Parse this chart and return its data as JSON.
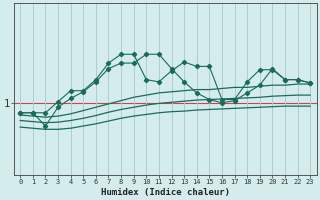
{
  "xlabel": "Humidex (Indice chaleur)",
  "background_color": "#d4ecec",
  "line_color": "#1a6b5a",
  "grid_color": "#aecece",
  "red_line_color": "#cc4444",
  "x_ticks": [
    0,
    1,
    2,
    3,
    4,
    5,
    6,
    7,
    8,
    9,
    10,
    11,
    12,
    13,
    14,
    15,
    16,
    17,
    18,
    19,
    20,
    21,
    22,
    23
  ],
  "y_tick_val": 1.0,
  "ylim": [
    -0.3,
    2.8
  ],
  "xlim": [
    -0.5,
    23.5
  ],
  "jagged1_y": [
    0.82,
    0.82,
    0.58,
    0.92,
    1.08,
    1.2,
    1.38,
    1.62,
    1.72,
    1.72,
    1.88,
    1.88,
    1.62,
    1.38,
    1.18,
    1.06,
    1.0,
    1.04,
    1.18,
    1.32,
    1.62,
    1.42,
    1.42,
    1.36
  ],
  "jagged2_y": [
    0.82,
    0.82,
    0.82,
    1.02,
    1.22,
    1.22,
    1.42,
    1.72,
    1.88,
    1.88,
    1.42,
    1.38,
    1.58,
    1.74,
    1.66,
    1.66,
    1.06,
    1.06,
    1.38,
    1.6,
    1.6,
    1.42,
    1.42,
    1.36
  ],
  "smooth_upper_y": [
    0.78,
    0.76,
    0.74,
    0.76,
    0.8,
    0.86,
    0.92,
    0.98,
    1.04,
    1.1,
    1.14,
    1.18,
    1.2,
    1.22,
    1.24,
    1.24,
    1.26,
    1.28,
    1.28,
    1.3,
    1.32,
    1.32,
    1.34,
    1.34
  ],
  "smooth_mid_y": [
    0.68,
    0.66,
    0.64,
    0.65,
    0.68,
    0.72,
    0.77,
    0.83,
    0.88,
    0.92,
    0.96,
    0.99,
    1.01,
    1.03,
    1.05,
    1.06,
    1.07,
    1.08,
    1.09,
    1.1,
    1.12,
    1.13,
    1.14,
    1.14
  ],
  "smooth_lower_y": [
    0.56,
    0.54,
    0.52,
    0.52,
    0.54,
    0.58,
    0.62,
    0.67,
    0.72,
    0.76,
    0.79,
    0.82,
    0.84,
    0.85,
    0.87,
    0.88,
    0.89,
    0.9,
    0.91,
    0.92,
    0.93,
    0.94,
    0.94,
    0.94
  ]
}
